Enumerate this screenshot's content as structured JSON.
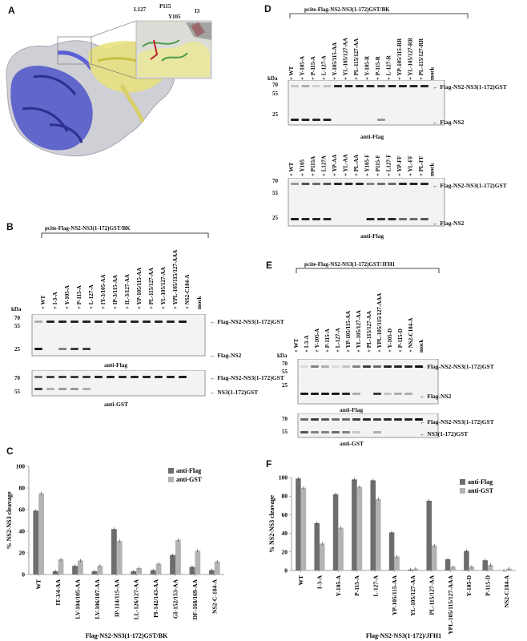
{
  "panel_letters": {
    "A": "A",
    "B": "B",
    "C": "C",
    "D": "D",
    "E": "E",
    "F": "F"
  },
  "panelA": {
    "residue_labels": [
      "L127",
      "P115",
      "Y105",
      "I3"
    ]
  },
  "panelB": {
    "construct": "pcite-Flag-NS2-NS3(1-172)GST/BK",
    "lanes": [
      "WT",
      "I-3-A",
      "Y-105-A",
      "P-115-A",
      "L-127-A",
      "IY-3/105-AA",
      "IP-3/115-AA",
      "IL-3/127-AA",
      "YP-105/115-AA",
      "PL-115/127-AA",
      "YL-105/127-AA",
      "YPL-105/115/127-AAA",
      "NS2-C184-A",
      "mock"
    ],
    "kda_label": "kDa",
    "blot1": {
      "markers": [
        "70",
        "55",
        "25"
      ],
      "bands": [
        "Flag-NS2-NS3(1-172)GST",
        "Flag-NS2"
      ],
      "antibody": "anti-Flag"
    },
    "blot2": {
      "markers": [
        "70",
        "55"
      ],
      "bands": [
        "Flag-NS2-NS3(1-172)GST",
        "NS3(1-172)GST"
      ],
      "antibody": "anti-GST"
    }
  },
  "panelD": {
    "construct": "pcite-Flag-NS2-NS3(1-172)GST/BK",
    "lanes_top": [
      "WT",
      "Y-105-A",
      "P-115-A",
      "L-127-A",
      "Y-105/115-AA",
      "YL-105/127-AA",
      "PL-115/127-AA",
      "Y-105-R",
      "P-115-R",
      "L-127-R",
      "YP-105/115-RR",
      "YL-105/127-RR",
      "PL-115/127-RR",
      "mock"
    ],
    "blot1": {
      "kda_label": "kDa",
      "markers": [
        "70",
        "55",
        "25"
      ],
      "bands": [
        "Flag-NS2-NS3(1-172)GST",
        "Flag-NS2"
      ],
      "antibody": "anti-Flag"
    },
    "lanes_bottom": [
      "WT",
      "Y105",
      "P115A",
      "L127A",
      "YP-AA",
      "YL-AA",
      "PL-AA",
      "Y105-F",
      "P115-F",
      "L127-F",
      "YP-FF",
      "YL-FF",
      "PL-FF",
      "mock"
    ],
    "blot2": {
      "markers": [
        "70",
        "55",
        "25"
      ],
      "bands": [
        "Flag-NS2-NS3(1-172)GST",
        "Flag-NS2"
      ],
      "antibody": "anti-Flag"
    }
  },
  "panelE": {
    "construct": "pcite-Flag-NS2-NS3(1-172)GST/JFH1",
    "lanes": [
      "WT",
      "I-3-A",
      "Y-105-A",
      "P-115-A",
      "L-127-A",
      "YP-105/115-AA",
      "YL-105/127-AA",
      "PL-115/127-AA",
      "YPL-105/115/127-AAA",
      "Y-105-D",
      "P-115-D",
      "NS2-C184-A",
      "mock"
    ],
    "kda_label": "kDa",
    "blot1": {
      "markers": [
        "70",
        "55",
        "25"
      ],
      "bands": [
        "Flag-NS2-NS3(1-172)GST",
        "Flag-NS2"
      ],
      "antibody": "anti-Flag"
    },
    "blot2": {
      "markers": [
        "70",
        "55"
      ],
      "bands": [
        "Flag-NS2-NS3(1-172)GST",
        "NS3(1-172)GST"
      ],
      "antibody": "anti-GST"
    }
  },
  "chart_data": [
    {
      "type": "bar",
      "panel": "C",
      "categories": [
        "WT",
        "IT-3/4-AA",
        "LV-104/105-AA",
        "LV-106/107-AA",
        "IP-114/115-AA",
        "LL-126/127-AA",
        "PI-142/143-AA",
        "GI-152/153-AA",
        "DF-168/169-AA",
        "NS2-C-184-A"
      ],
      "series": [
        {
          "name": "anti-Flag",
          "color": "#6d6d6d",
          "values": [
            59,
            3,
            8,
            3,
            42,
            3,
            4,
            18,
            7,
            4
          ]
        },
        {
          "name": "anti-GST",
          "color": "#b3b3b3",
          "values": [
            75,
            14,
            13,
            8,
            31,
            6,
            10,
            32,
            22,
            12
          ]
        }
      ],
      "ylabel": "% NS2-NS3 cleavage",
      "xlabel": "Flag-NS2-NS3(1-172)GST/BK",
      "ylim": [
        0,
        100
      ],
      "yticks": [
        "0",
        "20",
        "40",
        "60",
        "80",
        "100"
      ],
      "legend": "top-right",
      "grid": false
    },
    {
      "type": "bar",
      "panel": "F",
      "categories": [
        "WT",
        "I-3-A",
        "Y-105-A",
        "P-115-A",
        "L-127-A",
        "YP-105/115-AA",
        "YL-105/127-AA",
        "PL-115/127-AA",
        "YPL-105/115/127-AAA",
        "Y-105-D",
        "P-115-D",
        "NS2-C184-A"
      ],
      "series": [
        {
          "name": "anti-Flag",
          "color": "#6d6d6d",
          "values": [
            99,
            51,
            82,
            98,
            97,
            41,
            1,
            75,
            12,
            21,
            11,
            0
          ]
        },
        {
          "name": "anti-GST",
          "color": "#b3b3b3",
          "values": [
            89,
            29,
            46,
            90,
            77,
            15,
            2,
            27,
            4,
            4,
            6,
            2
          ]
        }
      ],
      "ylabel": "% NS2-NS3 cleavage",
      "xlabel": "Flag-NS2-NS3(1-172)/JFH1",
      "ylim": [
        0,
        100
      ],
      "yticks": [
        "0",
        "20",
        "40",
        "60",
        "80",
        "100"
      ],
      "legend": "top-right",
      "grid": false
    }
  ]
}
